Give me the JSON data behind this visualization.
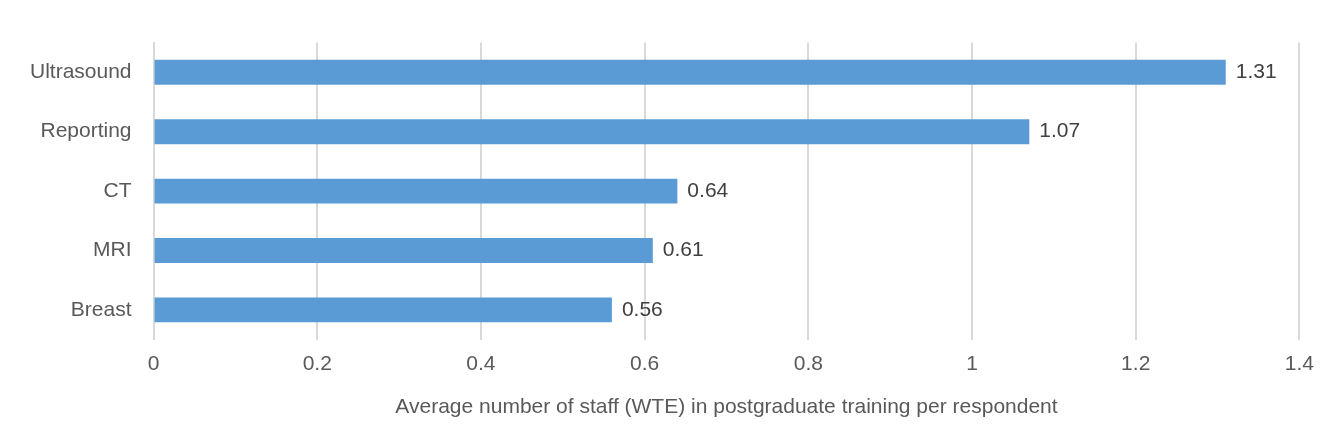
{
  "chart_data": {
    "type": "bar",
    "orientation": "horizontal",
    "xlabel": "Average number of staff (WTE) in postgraduate training per respondent",
    "categories": [
      "Ultrasound",
      "Reporting",
      "CT",
      "MRI",
      "Breast"
    ],
    "values": [
      1.31,
      1.07,
      0.64,
      0.61,
      0.56
    ],
    "color": "#5b9bd5",
    "xlim": [
      0,
      1.4
    ],
    "xticks": [
      0,
      0.2,
      0.4,
      0.6,
      0.8,
      1,
      1.2,
      1.4
    ],
    "grid": "x",
    "data_labels": true,
    "legend": false
  }
}
